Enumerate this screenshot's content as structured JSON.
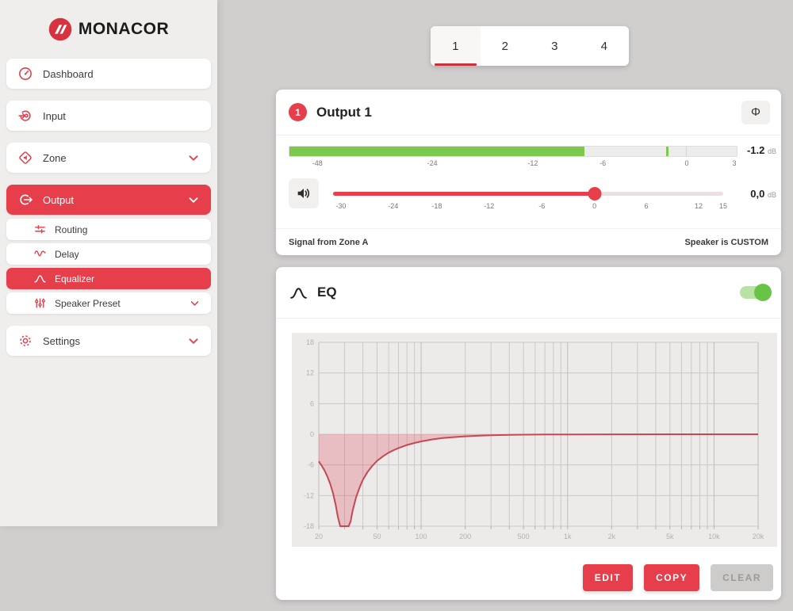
{
  "sidebar": {
    "logo_text": "MONACOR",
    "items": [
      {
        "label": "Dashboard",
        "icon": "gauge",
        "chevron": false,
        "active": false
      },
      {
        "label": "Input",
        "icon": "input-target",
        "chevron": false,
        "active": false
      },
      {
        "label": "Zone",
        "icon": "zone-speaker",
        "chevron": true,
        "active": false
      },
      {
        "label": "Output",
        "icon": "output-arrow",
        "chevron": true,
        "active": true,
        "children": [
          {
            "label": "Routing",
            "icon": "routing-sliders",
            "chevron": false,
            "active": false
          },
          {
            "label": "Delay",
            "icon": "delay-wave",
            "chevron": false,
            "active": false
          },
          {
            "label": "Equalizer",
            "icon": "eq-bell",
            "chevron": false,
            "active": true
          },
          {
            "label": "Speaker Preset",
            "icon": "preset-sliders",
            "chevron": true,
            "active": false
          }
        ]
      },
      {
        "label": "Settings",
        "icon": "gear",
        "chevron": true,
        "active": false
      }
    ]
  },
  "tabs": {
    "items": [
      "1",
      "2",
      "3",
      "4"
    ],
    "active_index": 0
  },
  "output_panel": {
    "badge": "1",
    "title": "Output 1",
    "phase_symbol": "Φ",
    "meter": {
      "value": "-1.2",
      "unit": "dB",
      "fill_percent": 65.9,
      "peak_percent": 84.3,
      "zero_percent": 88.7,
      "ticks": [
        {
          "label": "-48",
          "pos": 6.4
        },
        {
          "label": "-24",
          "pos": 32
        },
        {
          "label": "-12",
          "pos": 54.4
        },
        {
          "label": "-6",
          "pos": 70
        },
        {
          "label": "0",
          "pos": 88.7
        },
        {
          "label": "3",
          "pos": 99.3
        }
      ]
    },
    "volume": {
      "value": "0,0",
      "unit": "dB",
      "knob_percent": 67,
      "ticks": [
        {
          "label": "-30",
          "pos": 2
        },
        {
          "label": "-24",
          "pos": 15.4
        },
        {
          "label": "-18",
          "pos": 26.6
        },
        {
          "label": "-12",
          "pos": 40
        },
        {
          "label": "-6",
          "pos": 53.5
        },
        {
          "label": "0",
          "pos": 67
        },
        {
          "label": "6",
          "pos": 80.3
        },
        {
          "label": "12",
          "pos": 93.7
        },
        {
          "label": "15",
          "pos": 100
        }
      ]
    },
    "footer_left": "Signal from Zone A",
    "footer_right": "Speaker is CUSTOM"
  },
  "eq_panel": {
    "title": "EQ",
    "toggle_on": true,
    "buttons": [
      {
        "label": "EDIT",
        "variant": "primary"
      },
      {
        "label": "COPY",
        "variant": "primary"
      },
      {
        "label": "CLEAR",
        "variant": "disabled"
      }
    ],
    "chart_data": {
      "type": "line",
      "x_scale": "log",
      "x_range": [
        20,
        20000
      ],
      "y_range": [
        -18,
        18
      ],
      "xlabel": "",
      "ylabel": "",
      "grid": "on, log minor verticals, 6 dB horizontals",
      "legend": "none",
      "y_ticks": [
        18,
        12,
        6,
        0,
        -6,
        -12,
        -18
      ],
      "x_ticks": [
        [
          20,
          "20"
        ],
        [
          50,
          "50"
        ],
        [
          100,
          "100"
        ],
        [
          200,
          "200"
        ],
        [
          500,
          "500"
        ],
        [
          1000,
          "1k"
        ],
        [
          2000,
          "2k"
        ],
        [
          5000,
          "5k"
        ],
        [
          10000,
          "10k"
        ],
        [
          20000,
          "20k"
        ]
      ],
      "series": [
        {
          "name": "EQ response (dB vs Hz)",
          "fill_to": 0,
          "points": [
            [
              20,
              -5.3
            ],
            [
              21,
              -6.2
            ],
            [
              22,
              -7.2
            ],
            [
              23,
              -8.4
            ],
            [
              24,
              -9.8
            ],
            [
              25,
              -11.5
            ],
            [
              26,
              -13.6
            ],
            [
              27,
              -16.2
            ],
            [
              28,
              -19.5
            ],
            [
              29,
              -22
            ],
            [
              30,
              -23
            ],
            [
              31,
              -22
            ],
            [
              32,
              -19.5
            ],
            [
              33,
              -17
            ],
            [
              34,
              -15
            ],
            [
              36,
              -12.3
            ],
            [
              38,
              -10.4
            ],
            [
              40,
              -8.9
            ],
            [
              43,
              -7.4
            ],
            [
              46,
              -6.3
            ],
            [
              50,
              -5.2
            ],
            [
              55,
              -4.3
            ],
            [
              60,
              -3.6
            ],
            [
              65,
              -3.1
            ],
            [
              70,
              -2.7
            ],
            [
              80,
              -2.1
            ],
            [
              90,
              -1.7
            ],
            [
              100,
              -1.4
            ],
            [
              120,
              -1.0
            ],
            [
              140,
              -0.75
            ],
            [
              170,
              -0.55
            ],
            [
              200,
              -0.4
            ],
            [
              250,
              -0.28
            ],
            [
              300,
              -0.2
            ],
            [
              400,
              -0.12
            ],
            [
              500,
              -0.08
            ],
            [
              700,
              -0.05
            ],
            [
              1000,
              -0.03
            ],
            [
              2000,
              -0.01
            ],
            [
              5000,
              0
            ],
            [
              10000,
              0
            ],
            [
              20000,
              0
            ]
          ]
        }
      ]
    }
  },
  "colors": {
    "accent_red": "#e63e4b",
    "accent_red_dark": "#c8343e",
    "meter_green": "#7cc94f",
    "toggle_green": "#67c447",
    "toggle_track": "#b9e3a4",
    "page_bg": "#d1cfce",
    "sidebar_bg": "#efeeed",
    "card_bg": "#ffffff",
    "chart_bg": "#ecebea",
    "grid_color": "#c9c8c7",
    "curve_stroke": "#c64853",
    "curve_fill": "rgba(224,76,88,0.28)"
  }
}
